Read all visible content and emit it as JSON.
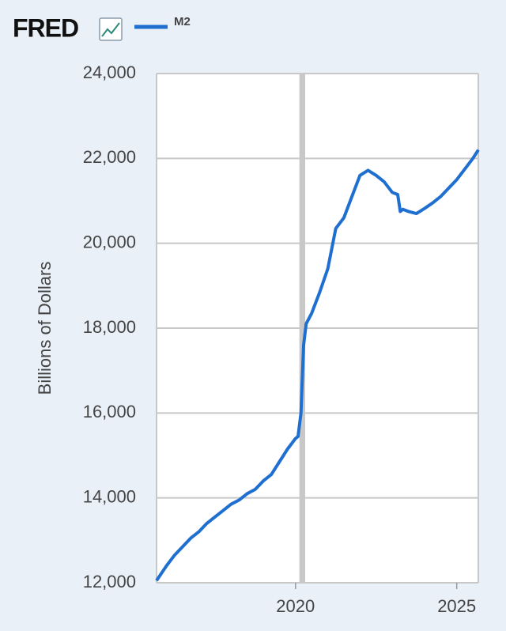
{
  "chart_data": {
    "type": "line",
    "logo": "FRED",
    "y_label": "Billions of Dollars",
    "series": [
      {
        "name": "M2",
        "color": "#1f6fd0",
        "x": [
          2015.69,
          2016.0,
          2016.25,
          2016.5,
          2016.75,
          2017.0,
          2017.25,
          2017.5,
          2017.75,
          2018.0,
          2018.25,
          2018.5,
          2018.75,
          2019.0,
          2019.25,
          2019.5,
          2019.75,
          2020.0,
          2020.08,
          2020.17,
          2020.25,
          2020.33,
          2020.5,
          2020.75,
          2021.0,
          2021.25,
          2021.5,
          2021.75,
          2022.0,
          2022.25,
          2022.5,
          2022.75,
          2023.0,
          2023.17,
          2023.25,
          2023.33,
          2023.5,
          2023.75,
          2024.0,
          2024.25,
          2024.5,
          2024.75,
          2025.0,
          2025.25,
          2025.5,
          2025.67
        ],
        "values": [
          12050,
          12400,
          12650,
          12850,
          13050,
          13200,
          13400,
          13550,
          13700,
          13850,
          13950,
          14100,
          14200,
          14400,
          14550,
          14850,
          15150,
          15400,
          15450,
          16000,
          17600,
          18100,
          18350,
          18850,
          19400,
          20350,
          20600,
          21100,
          21600,
          21720,
          21600,
          21450,
          21200,
          21150,
          20750,
          20800,
          20750,
          20700,
          20820,
          20950,
          21100,
          21300,
          21500,
          21750,
          22000,
          22200
        ]
      }
    ],
    "recession": [
      2020.12,
      2020.3
    ],
    "xlim": [
      2015.69,
      2025.67
    ],
    "xticks": [
      2020,
      2025
    ],
    "ylim": [
      12000,
      24000
    ],
    "yticks": [
      {
        "value": 12000,
        "label": "12,000"
      },
      {
        "value": 14000,
        "label": "14,000"
      },
      {
        "value": 16000,
        "label": "16,000"
      },
      {
        "value": 18000,
        "label": "18,000"
      },
      {
        "value": 20000,
        "label": "20,000"
      },
      {
        "value": 22000,
        "label": "22,000"
      },
      {
        "value": 24000,
        "label": "24,000"
      }
    ],
    "grid": true
  }
}
